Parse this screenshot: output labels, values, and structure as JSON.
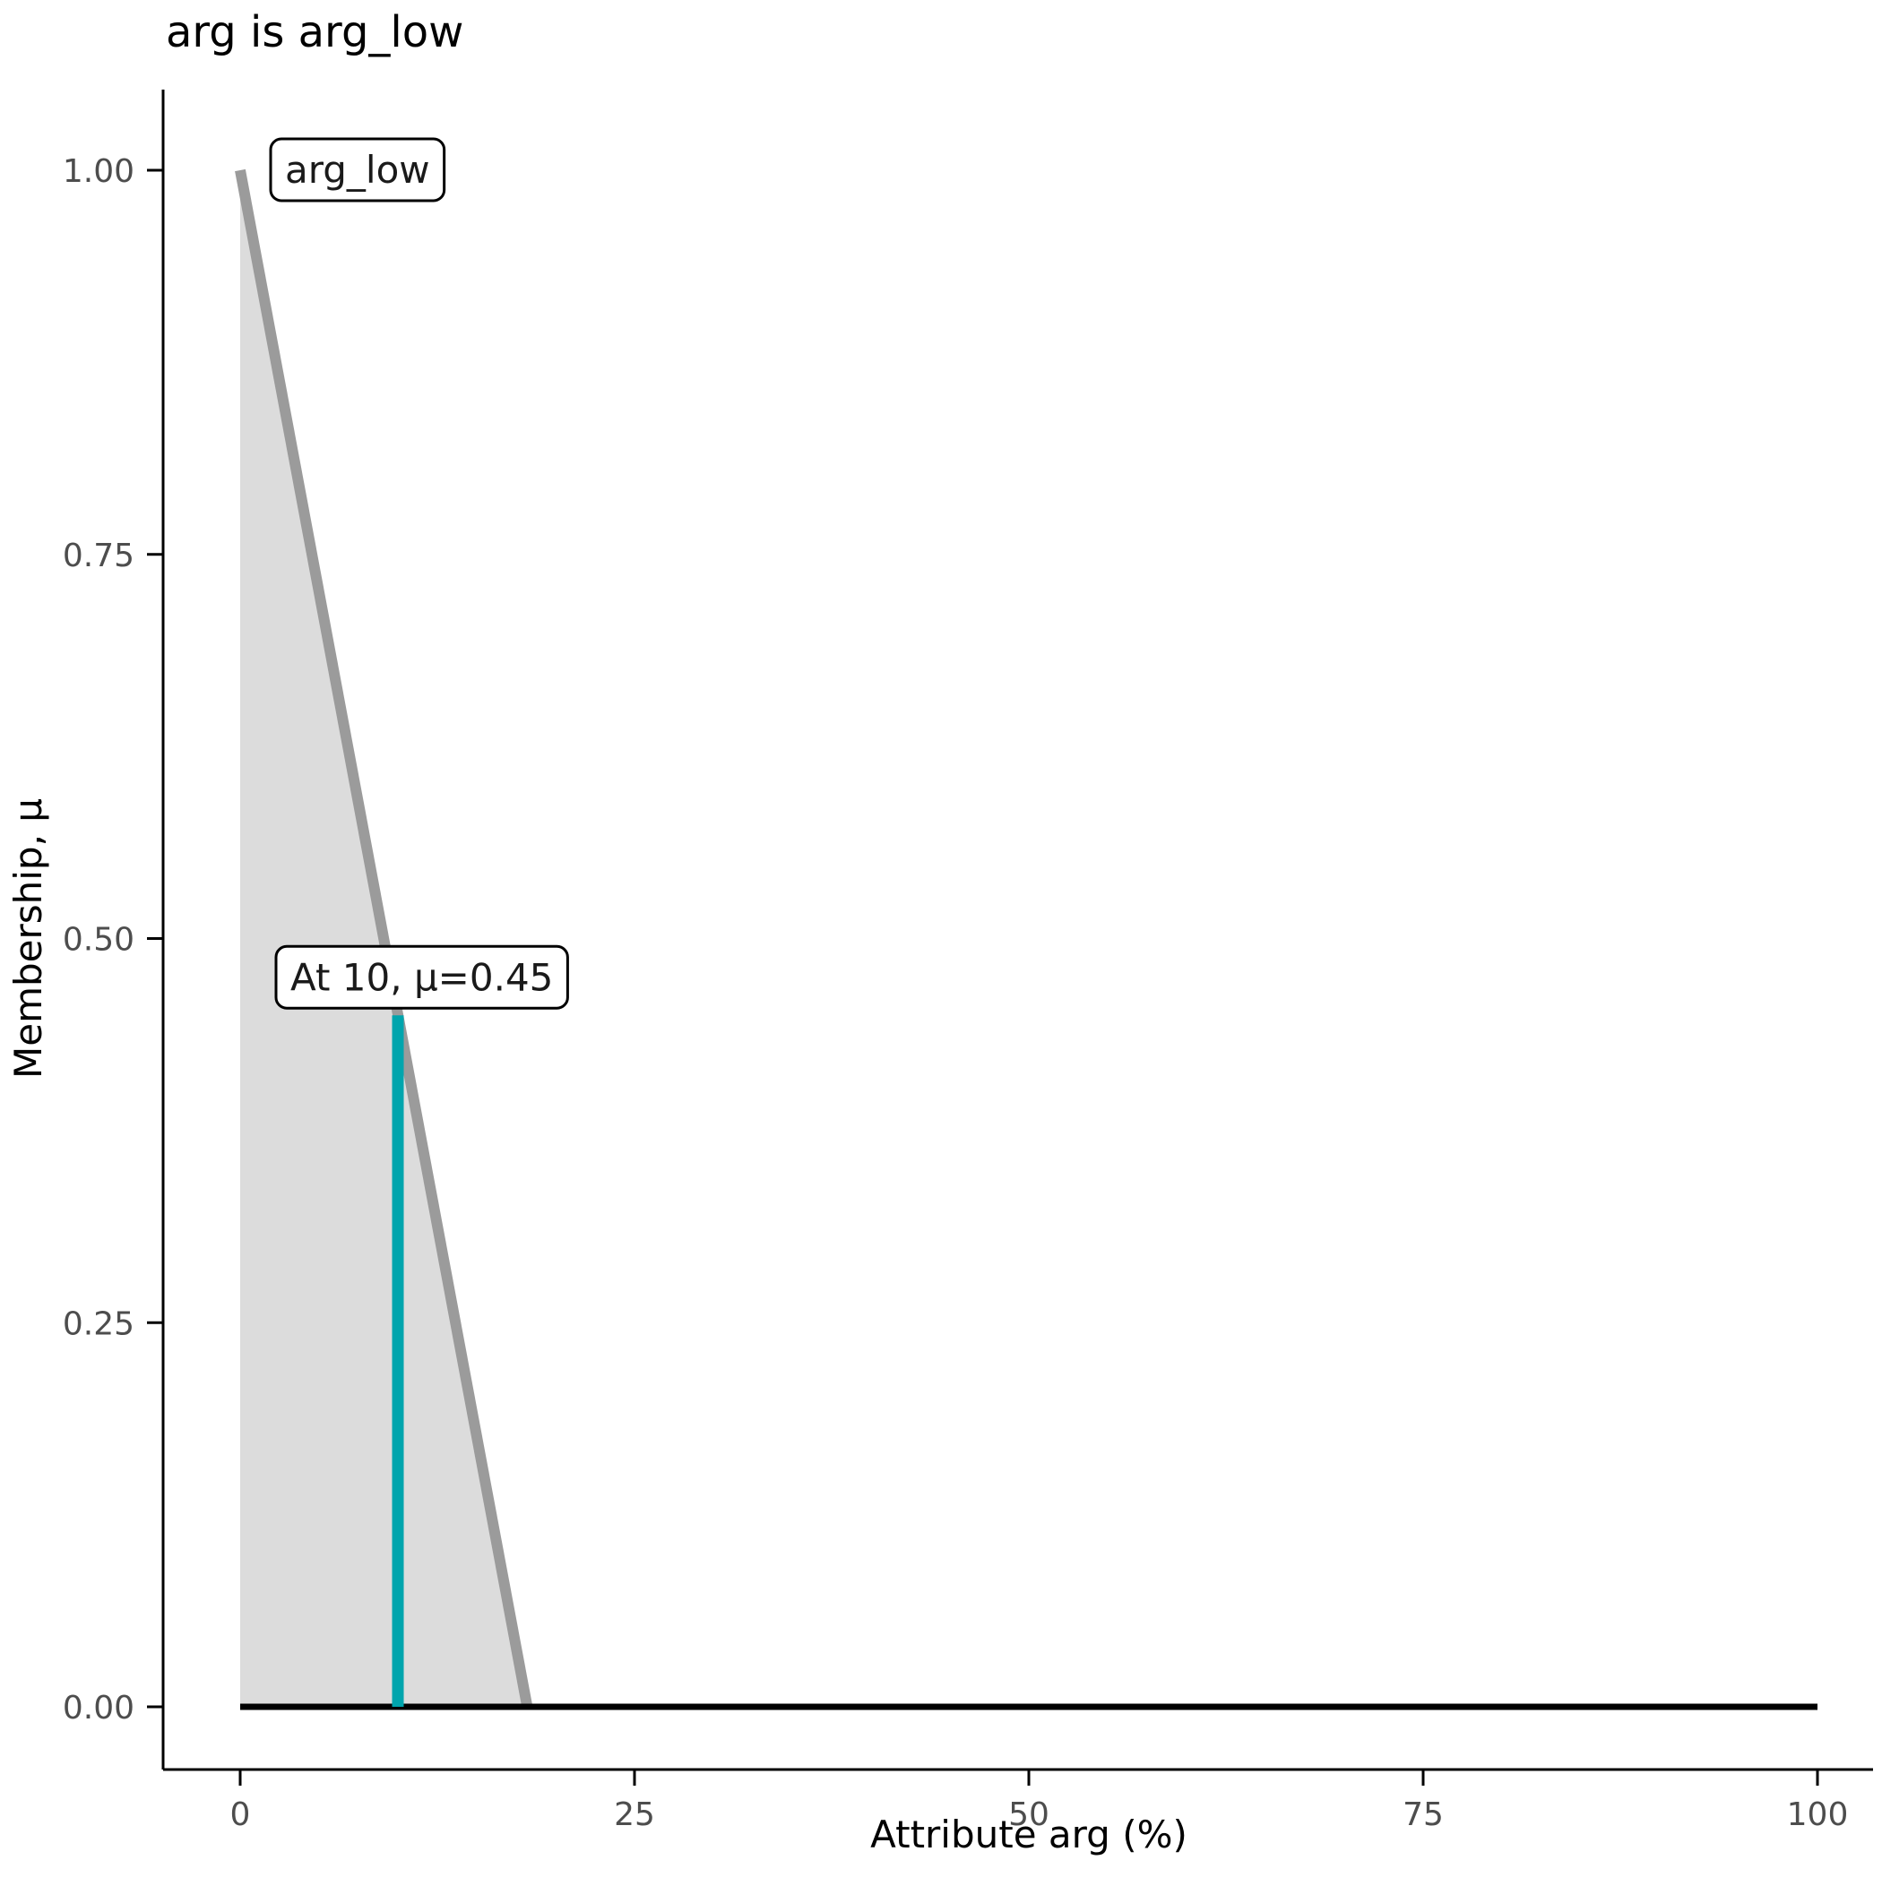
{
  "chart_data": {
    "type": "area",
    "title": "arg is arg_low",
    "xlabel": "Attribute arg (%)",
    "ylabel": "Membership, μ",
    "xlim": [
      0,
      100
    ],
    "ylim": [
      0,
      1
    ],
    "x_ticks": [
      0,
      25,
      50,
      75,
      100
    ],
    "x_tick_labels": [
      "0",
      "25",
      "50",
      "75",
      "100"
    ],
    "y_ticks": [
      0,
      0.25,
      0.5,
      0.75,
      1.0
    ],
    "y_tick_labels": [
      "0.00",
      "0.25",
      "0.50",
      "0.75",
      "1.00"
    ],
    "grid": false,
    "legend": "none",
    "series": [
      {
        "name": "arg_low",
        "role": "membership-function",
        "line_color": "#9b9b9b",
        "fill_color": "#dcdcdc",
        "points": [
          [
            0,
            1.0
          ],
          [
            18.2,
            0.0
          ]
        ]
      },
      {
        "name": "baseline",
        "role": "zero-membership-line",
        "line_color": "#000000",
        "points": [
          [
            0,
            0
          ],
          [
            100,
            0
          ]
        ]
      }
    ],
    "marker": {
      "x": 10,
      "mu": 0.45,
      "color": "#00a5ad",
      "label": "At 10, μ=0.45"
    },
    "annotations": [
      {
        "id": "set-label",
        "text": "arg_low",
        "x": 0,
        "y": 1.0
      },
      {
        "id": "eval-label",
        "text": "At 10, μ=0.45",
        "x": 10,
        "y": 0.45
      }
    ],
    "colors": {
      "axis": "#000000",
      "tick_text": "#4d4d4d",
      "annotation_box_fill": "#ffffff",
      "annotation_box_stroke": "#000000"
    }
  }
}
